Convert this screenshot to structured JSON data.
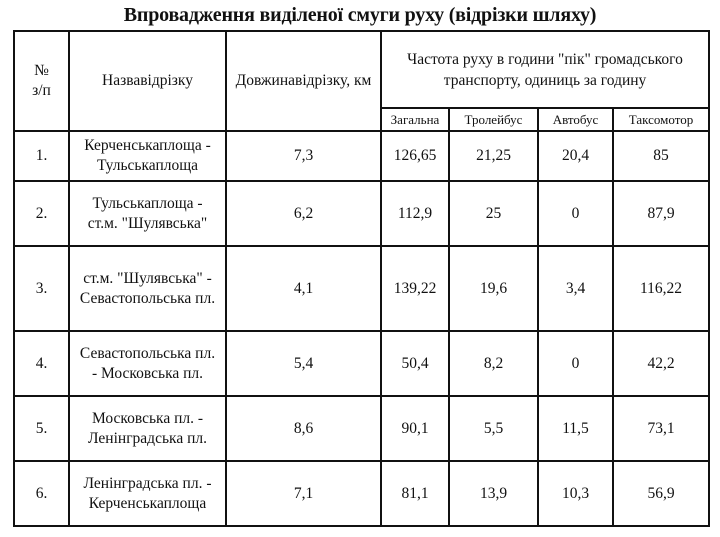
{
  "title": "Впровадження виділеної смуги руху (відрізки шляху)",
  "headers": {
    "num": "№ з/п",
    "name": "Назвавідрізку",
    "length": "Довжинавідрізку, км",
    "freq": "Частота руху в години \"пік\" громадського транспорту, одиниць за годину",
    "total": "Загальна",
    "trolley": "Тролейбус",
    "bus": "Автобус",
    "taxi": "Таксомотор"
  },
  "rows": [
    {
      "num": "1.",
      "name": "Керченськаплоща - Тульськаплоща",
      "length": "7,3",
      "total": "126,65",
      "trolley": "21,25",
      "bus": "20,4",
      "taxi": "85"
    },
    {
      "num": "2.",
      "name": "Тульськаплоща - ст.м. \"Шулявська\"",
      "length": "6,2",
      "total": "112,9",
      "trolley": "25",
      "bus": "0",
      "taxi": "87,9"
    },
    {
      "num": "3.",
      "name": "ст.м. \"Шулявська\" - Севастопольська пл.",
      "length": "4,1",
      "total": "139,22",
      "trolley": "19,6",
      "bus": "3,4",
      "taxi": "116,22"
    },
    {
      "num": "4.",
      "name": "Севастопольська пл. - Московська пл.",
      "length": "5,4",
      "total": "50,4",
      "trolley": "8,2",
      "bus": "0",
      "taxi": "42,2"
    },
    {
      "num": "5.",
      "name": "Московська пл. - Ленінградська пл.",
      "length": "8,6",
      "total": "90,1",
      "trolley": "5,5",
      "bus": "11,5",
      "taxi": "73,1"
    },
    {
      "num": "6.",
      "name": "Ленінградська пл. - Керченськаплоща",
      "length": "7,1",
      "total": "81,1",
      "trolley": "13,9",
      "bus": "10,3",
      "taxi": "56,9"
    }
  ]
}
